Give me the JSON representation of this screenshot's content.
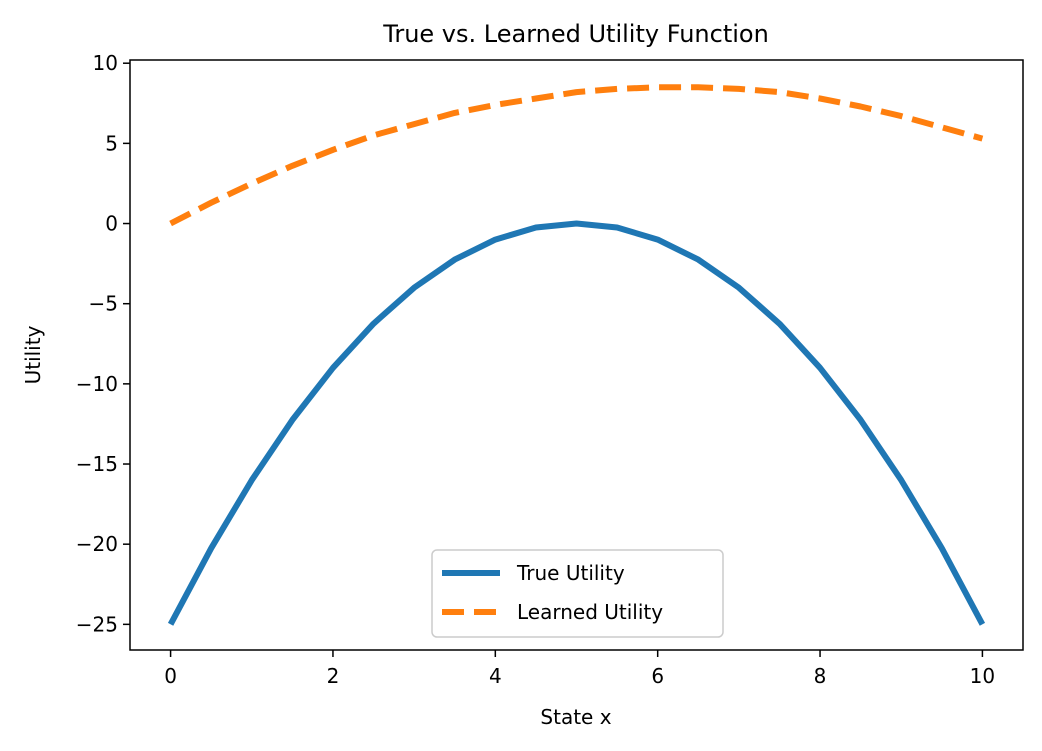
{
  "chart_data": {
    "type": "line",
    "title": "True vs. Learned Utility Function",
    "xlabel": "State x",
    "ylabel": "Utility",
    "xlim": [
      -0.5,
      10.5
    ],
    "ylim": [
      -26.6,
      10.2
    ],
    "xticks": [
      0,
      2,
      4,
      6,
      8,
      10
    ],
    "yticks": [
      10,
      5,
      0,
      -5,
      -10,
      -15,
      -20,
      -25
    ],
    "x_tick_labels": [
      "0",
      "2",
      "4",
      "6",
      "8",
      "10"
    ],
    "y_tick_labels": [
      "10",
      "5",
      "0",
      "−5",
      "−10",
      "−15",
      "−20",
      "−25"
    ],
    "grid": false,
    "legend_position": "lower center",
    "series": [
      {
        "name": "True Utility",
        "color": "#1f77b4",
        "style": "solid",
        "x": [
          0,
          0.5,
          1,
          1.5,
          2,
          2.5,
          3,
          3.5,
          4,
          4.5,
          5,
          5.5,
          6,
          6.5,
          7,
          7.5,
          8,
          8.5,
          9,
          9.5,
          10
        ],
        "y": [
          -25,
          -20.25,
          -16,
          -12.25,
          -9,
          -6.25,
          -4,
          -2.25,
          -1,
          -0.25,
          0,
          -0.25,
          -1,
          -2.25,
          -4,
          -6.25,
          -9,
          -12.25,
          -16,
          -20.25,
          -25
        ]
      },
      {
        "name": "Learned Utility",
        "color": "#ff7f0e",
        "style": "dashed",
        "x": [
          0,
          0.5,
          1,
          1.5,
          2,
          2.5,
          3,
          3.5,
          4,
          4.5,
          5,
          5.5,
          6,
          6.5,
          7,
          7.5,
          8,
          8.5,
          9,
          9.5,
          10
        ],
        "y": [
          0,
          1.3,
          2.5,
          3.6,
          4.6,
          5.5,
          6.2,
          6.9,
          7.4,
          7.8,
          8.2,
          8.4,
          8.5,
          8.5,
          8.4,
          8.2,
          7.8,
          7.3,
          6.7,
          6.0,
          5.3
        ]
      }
    ]
  }
}
